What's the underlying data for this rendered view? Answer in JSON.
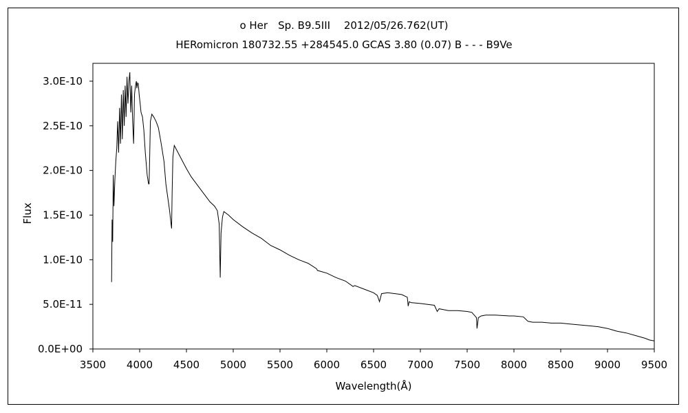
{
  "chart_data": {
    "type": "line",
    "title": "ο Her　Sp. B9.5III　 2012/05/26.762(UT)",
    "subtitle": "HERomicron 180732.55 +284545.0 GCAS 3.80 (0.07) B - - - B9Ve",
    "xlabel": "Wavelength(Å)",
    "ylabel": "Flux",
    "xlim": [
      3500,
      9500
    ],
    "ylim": [
      0,
      3.2e-10
    ],
    "grid": false,
    "x_ticks": [
      "3500",
      "4000",
      "4500",
      "5000",
      "5500",
      "6000",
      "6500",
      "7000",
      "7500",
      "8000",
      "8500",
      "9000",
      "9500"
    ],
    "y_ticks": [
      "0.0E+00",
      "5.0E-11",
      "1.0E-10",
      "1.5E-10",
      "2.0E-10",
      "2.5E-10",
      "3.0E-10"
    ],
    "series": [
      {
        "x": [
          3700,
          3705,
          3712,
          3718,
          3725,
          3735,
          3745,
          3755,
          3765,
          3775,
          3785,
          3795,
          3805,
          3815,
          3825,
          3835,
          3845,
          3855,
          3865,
          3875,
          3885,
          3895,
          3905,
          3915,
          3925,
          3935,
          3945,
          3955,
          3965,
          3970,
          3978,
          3985,
          3995,
          4005,
          4015,
          4030,
          4045,
          4060,
          4080,
          4095,
          4101,
          4108,
          4115,
          4130,
          4150,
          4175,
          4200,
          4230,
          4260,
          4280,
          4300,
          4320,
          4335,
          4341,
          4347,
          4355,
          4370,
          4400,
          4450,
          4500,
          4550,
          4600,
          4650,
          4700,
          4750,
          4800,
          4830,
          4850,
          4861,
          4870,
          4885,
          4900,
          4950,
          5000,
          5100,
          5200,
          5300,
          5400,
          5500,
          5600,
          5700,
          5800,
          5890,
          5900,
          6000,
          6100,
          6200,
          6280,
          6300,
          6400,
          6500,
          6540,
          6563,
          6585,
          6650,
          6800,
          6860,
          6870,
          6880,
          6900,
          7000,
          7150,
          7180,
          7200,
          7250,
          7300,
          7400,
          7500,
          7550,
          7600,
          7605,
          7610,
          7620,
          7650,
          7700,
          7800,
          7950,
          8000,
          8100,
          8150,
          8200,
          8300,
          8400,
          8500,
          8600,
          8700,
          8800,
          8900,
          9000,
          9100,
          9200,
          9300,
          9400,
          9450,
          9500
        ],
        "y": [
          7.5e-11,
          1.45e-10,
          1.2e-10,
          1.95e-10,
          1.6e-10,
          1.9e-10,
          2.1e-10,
          2.25e-10,
          2.55e-10,
          2.2e-10,
          2.7e-10,
          2.3e-10,
          2.85e-10,
          2.35e-10,
          2.9e-10,
          2.5e-10,
          2.95e-10,
          2.6e-10,
          3.05e-10,
          2.75e-10,
          3e-10,
          3.1e-10,
          2.65e-10,
          2.95e-10,
          2.55e-10,
          2.3e-10,
          2.85e-10,
          2.95e-10,
          3e-10,
          2.92e-10,
          2.98e-10,
          2.97e-10,
          2.85e-10,
          2.75e-10,
          2.65e-10,
          2.6e-10,
          2.45e-10,
          2.2e-10,
          1.95e-10,
          1.85e-10,
          1.85e-10,
          2.2e-10,
          2.55e-10,
          2.63e-10,
          2.6e-10,
          2.55e-10,
          2.48e-10,
          2.3e-10,
          2.1e-10,
          1.85e-10,
          1.7e-10,
          1.55e-10,
          1.4e-10,
          1.35e-10,
          1.75e-10,
          2.15e-10,
          2.28e-10,
          2.22e-10,
          2.12e-10,
          2.02e-10,
          1.93e-10,
          1.86e-10,
          1.79e-10,
          1.72e-10,
          1.65e-10,
          1.6e-10,
          1.55e-10,
          1.4e-10,
          8e-11,
          1.3e-10,
          1.48e-10,
          1.54e-10,
          1.5e-10,
          1.45e-10,
          1.37e-10,
          1.3e-10,
          1.24e-10,
          1.16e-10,
          1.11e-10,
          1.05e-10,
          1e-10,
          9.6e-11,
          9e-11,
          8.8e-11,
          8.5e-11,
          8e-11,
          7.6e-11,
          7e-11,
          7.1e-11,
          6.7e-11,
          6.3e-11,
          6e-11,
          5.3e-11,
          6.2e-11,
          6.3e-11,
          6.1e-11,
          5.8e-11,
          4.8e-11,
          5.3e-11,
          5.2e-11,
          5.1e-11,
          4.9e-11,
          4.2e-11,
          4.5e-11,
          4.4e-11,
          4.3e-11,
          4.3e-11,
          4.2e-11,
          4.1e-11,
          3.5e-11,
          2.3e-11,
          2.7e-11,
          3.5e-11,
          3.7e-11,
          3.8e-11,
          3.8e-11,
          3.7e-11,
          3.7e-11,
          3.6e-11,
          3.1e-11,
          3e-11,
          3e-11,
          2.9e-11,
          2.9e-11,
          2.8e-11,
          2.7e-11,
          2.6e-11,
          2.5e-11,
          2.3e-11,
          2e-11,
          1.8e-11,
          1.5e-11,
          1.2e-11,
          1e-11,
          9e-12
        ]
      }
    ]
  }
}
